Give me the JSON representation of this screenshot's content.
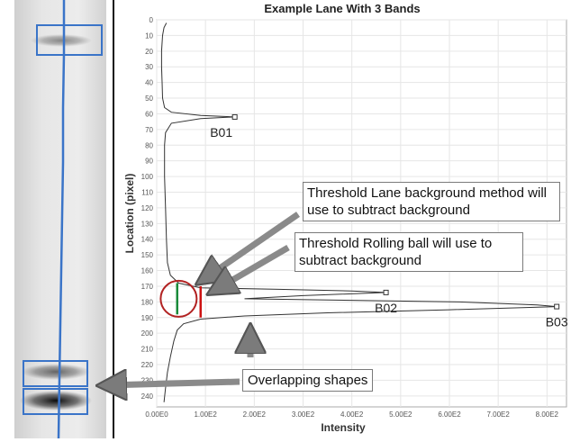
{
  "chart_data": {
    "type": "line",
    "title": "Example Lane With 3 Bands",
    "xlabel": "Intensity",
    "ylabel": "Location (pixel)",
    "xlim": [
      0,
      840
    ],
    "ylim": [
      0,
      247
    ],
    "x_ticks": [
      "0.00E0",
      "1.00E2",
      "2.00E2",
      "3.00E2",
      "4.00E2",
      "5.00E2",
      "6.00E2",
      "7.00E2",
      "8.00E2"
    ],
    "x_tick_values": [
      0,
      100,
      200,
      300,
      400,
      500,
      600,
      700,
      800
    ],
    "y_ticks": [
      "0",
      "10",
      "20",
      "30",
      "40",
      "50",
      "60",
      "70",
      "80",
      "90",
      "100",
      "110",
      "120",
      "130",
      "140",
      "150",
      "160",
      "170",
      "180",
      "190",
      "200",
      "210",
      "220",
      "230",
      "240"
    ],
    "y_tick_values": [
      0,
      10,
      20,
      30,
      40,
      50,
      60,
      70,
      80,
      90,
      100,
      110,
      120,
      130,
      140,
      150,
      160,
      170,
      180,
      190,
      200,
      210,
      220,
      230,
      240
    ],
    "series": [
      {
        "points": [
          [
            20,
            2
          ],
          [
            15,
            5
          ],
          [
            12,
            10
          ],
          [
            10,
            20
          ],
          [
            10,
            30
          ],
          [
            11,
            40
          ],
          [
            12,
            50
          ],
          [
            16,
            56
          ],
          [
            30,
            59
          ],
          [
            90,
            61
          ],
          [
            160,
            62
          ],
          [
            90,
            63
          ],
          [
            30,
            66
          ],
          [
            18,
            72
          ],
          [
            16,
            80
          ],
          [
            16,
            100
          ],
          [
            18,
            120
          ],
          [
            20,
            140
          ],
          [
            22,
            155
          ],
          [
            28,
            163
          ],
          [
            45,
            168
          ],
          [
            90,
            171
          ],
          [
            250,
            172
          ],
          [
            400,
            173
          ],
          [
            470,
            174
          ],
          [
            300,
            176
          ],
          [
            180,
            178
          ],
          [
            400,
            179
          ],
          [
            620,
            180
          ],
          [
            780,
            182
          ],
          [
            820,
            183
          ],
          [
            600,
            185
          ],
          [
            350,
            187
          ],
          [
            180,
            189
          ],
          [
            90,
            191
          ],
          [
            55,
            194
          ],
          [
            42,
            198
          ],
          [
            35,
            205
          ],
          [
            28,
            215
          ],
          [
            22,
            225
          ],
          [
            18,
            235
          ],
          [
            15,
            244
          ]
        ]
      }
    ],
    "markers": [
      {
        "label": "B01",
        "x": 160,
        "y": 62
      },
      {
        "label": "B02",
        "x": 470,
        "y": 174
      },
      {
        "label": "B03",
        "x": 820,
        "y": 183
      }
    ],
    "thresholds": [
      {
        "name": "lane-background",
        "x": 42,
        "y1": 168,
        "y2": 188,
        "color": "#1a8a3a"
      },
      {
        "name": "rolling-ball",
        "x": 90,
        "y1": 170,
        "y2": 190,
        "color": "#cc1111"
      }
    ],
    "threshold_circle": {
      "cx": 45,
      "cy": 178,
      "color": "#b22222"
    },
    "grid": true
  },
  "lane": {
    "bands": [
      {
        "label": "band-1",
        "y": 45,
        "intensity": 0.45
      },
      {
        "label": "band-2",
        "y": 413,
        "intensity": 0.6
      },
      {
        "label": "band-3",
        "y": 445,
        "intensity": 1.0
      }
    ],
    "line_color": "#3a74c8"
  },
  "annotations": {
    "lane_background": "Threshold Lane background method will use to subtract background",
    "rolling_ball": "Threshold Rolling ball will use to subtract background",
    "overlapping": "Overlapping shapes"
  },
  "colors": {
    "accent": "#3a74c8",
    "plot_bg": "#ffffff",
    "grid": "#e4e4e4"
  }
}
